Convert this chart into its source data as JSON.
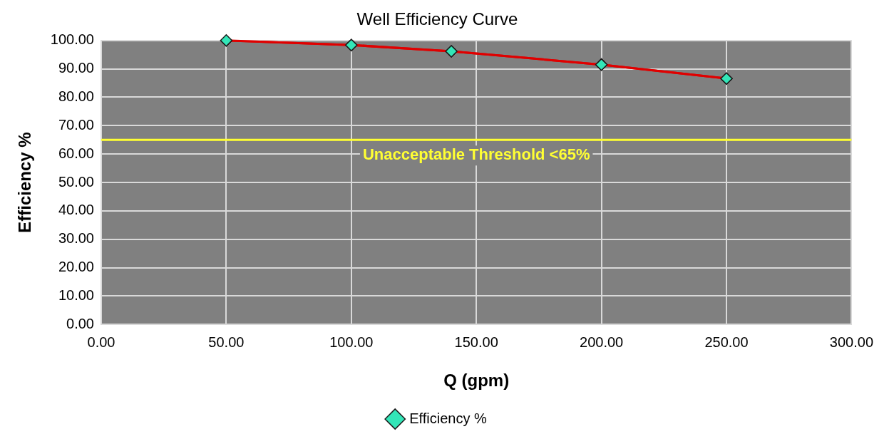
{
  "chart_data": {
    "type": "line",
    "title": "Well Efficiency Curve",
    "xlabel": "Q (gpm)",
    "ylabel": "Efficiency %",
    "series": [
      {
        "name": "Efficiency %",
        "color": "#e00000",
        "x": [
          50,
          100,
          140,
          200,
          250
        ],
        "values": [
          100,
          98.4,
          96.2,
          91.5,
          86.6
        ]
      }
    ],
    "xlim": [
      0,
      300
    ],
    "xticks": [
      {
        "value": 0,
        "label": "0.00"
      },
      {
        "value": 50,
        "label": "50.00"
      },
      {
        "value": 100,
        "label": "100.00"
      },
      {
        "value": 150,
        "label": "150.00"
      },
      {
        "value": 200,
        "label": "200.00"
      },
      {
        "value": 250,
        "label": "250.00"
      },
      {
        "value": 300,
        "label": "300.00"
      }
    ],
    "ylim": [
      0,
      100
    ],
    "yticks": [
      {
        "value": 0,
        "label": "0.00"
      },
      {
        "value": 10,
        "label": "10.00"
      },
      {
        "value": 20,
        "label": "20.00"
      },
      {
        "value": 30,
        "label": "30.00"
      },
      {
        "value": 40,
        "label": "40.00"
      },
      {
        "value": 50,
        "label": "50.00"
      },
      {
        "value": 60,
        "label": "60.00"
      },
      {
        "value": 70,
        "label": "70.00"
      },
      {
        "value": 80,
        "label": "80.00"
      },
      {
        "value": 90,
        "label": "90.00"
      },
      {
        "value": 100,
        "label": "100.00"
      }
    ],
    "ref_lines": [
      {
        "axis": "y",
        "value": 65,
        "label": "Unacceptable Threshold <65%",
        "color": "#ffff33"
      }
    ],
    "grid": true,
    "legend": "bottom",
    "marker": "diamond",
    "line_style": "solid"
  }
}
